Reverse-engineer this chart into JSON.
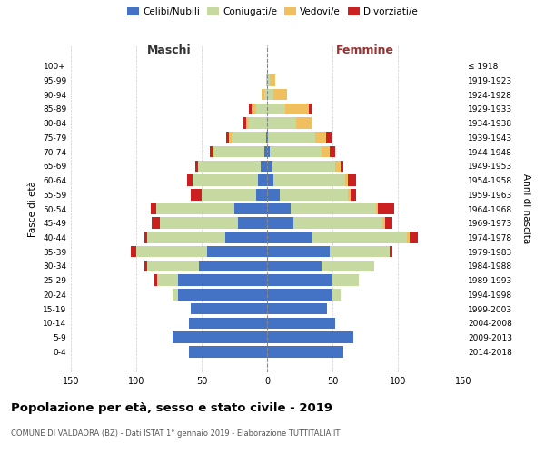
{
  "age_groups": [
    "0-4",
    "5-9",
    "10-14",
    "15-19",
    "20-24",
    "25-29",
    "30-34",
    "35-39",
    "40-44",
    "45-49",
    "50-54",
    "55-59",
    "60-64",
    "65-69",
    "70-74",
    "75-79",
    "80-84",
    "85-89",
    "90-94",
    "95-99",
    "100+"
  ],
  "birth_years": [
    "2014-2018",
    "2009-2013",
    "2004-2008",
    "1999-2003",
    "1994-1998",
    "1989-1993",
    "1984-1988",
    "1979-1983",
    "1974-1978",
    "1969-1973",
    "1964-1968",
    "1959-1963",
    "1954-1958",
    "1949-1953",
    "1944-1948",
    "1939-1943",
    "1934-1938",
    "1929-1933",
    "1924-1928",
    "1919-1923",
    "≤ 1918"
  ],
  "maschi_celibi": [
    60,
    72,
    60,
    58,
    68,
    68,
    52,
    46,
    32,
    22,
    25,
    8,
    7,
    5,
    2,
    1,
    0,
    0,
    0,
    0,
    0
  ],
  "maschi_coniugati": [
    0,
    0,
    0,
    0,
    4,
    16,
    40,
    54,
    60,
    60,
    60,
    42,
    50,
    48,
    38,
    26,
    14,
    8,
    2,
    1,
    0
  ],
  "maschi_vedovi": [
    0,
    0,
    0,
    0,
    0,
    0,
    0,
    0,
    0,
    0,
    0,
    0,
    0,
    0,
    2,
    2,
    2,
    4,
    2,
    0,
    0
  ],
  "maschi_divorziati": [
    0,
    0,
    0,
    0,
    0,
    2,
    2,
    4,
    2,
    6,
    4,
    8,
    4,
    2,
    2,
    2,
    2,
    2,
    0,
    0,
    0
  ],
  "femmine_celibi": [
    58,
    66,
    52,
    46,
    50,
    50,
    42,
    48,
    35,
    20,
    18,
    10,
    5,
    4,
    2,
    1,
    0,
    0,
    0,
    0,
    0
  ],
  "femmine_coniugati": [
    0,
    0,
    0,
    0,
    6,
    20,
    40,
    46,
    72,
    68,
    65,
    52,
    55,
    48,
    40,
    36,
    22,
    14,
    5,
    2,
    0
  ],
  "femmine_vedovi": [
    0,
    0,
    0,
    0,
    0,
    0,
    0,
    0,
    2,
    2,
    2,
    2,
    2,
    4,
    6,
    8,
    12,
    18,
    10,
    4,
    0
  ],
  "femmine_divorziati": [
    0,
    0,
    0,
    0,
    0,
    0,
    0,
    2,
    6,
    6,
    12,
    4,
    6,
    2,
    4,
    4,
    0,
    2,
    0,
    0,
    0
  ],
  "colors": {
    "celibi": "#4472C4",
    "coniugati": "#C6D9A0",
    "vedovi": "#F0C060",
    "divorziati": "#CC2020"
  },
  "xlim": 150,
  "title": "Popolazione per età, sesso e stato civile - 2019",
  "subtitle": "COMUNE DI VALDAORA (BZ) - Dati ISTAT 1° gennaio 2019 - Elaborazione TUTTITALIA.IT",
  "ylabel_left": "Fasce di età",
  "ylabel_right": "Anni di nascita",
  "xlabel_left": "Maschi",
  "xlabel_right": "Femmine"
}
